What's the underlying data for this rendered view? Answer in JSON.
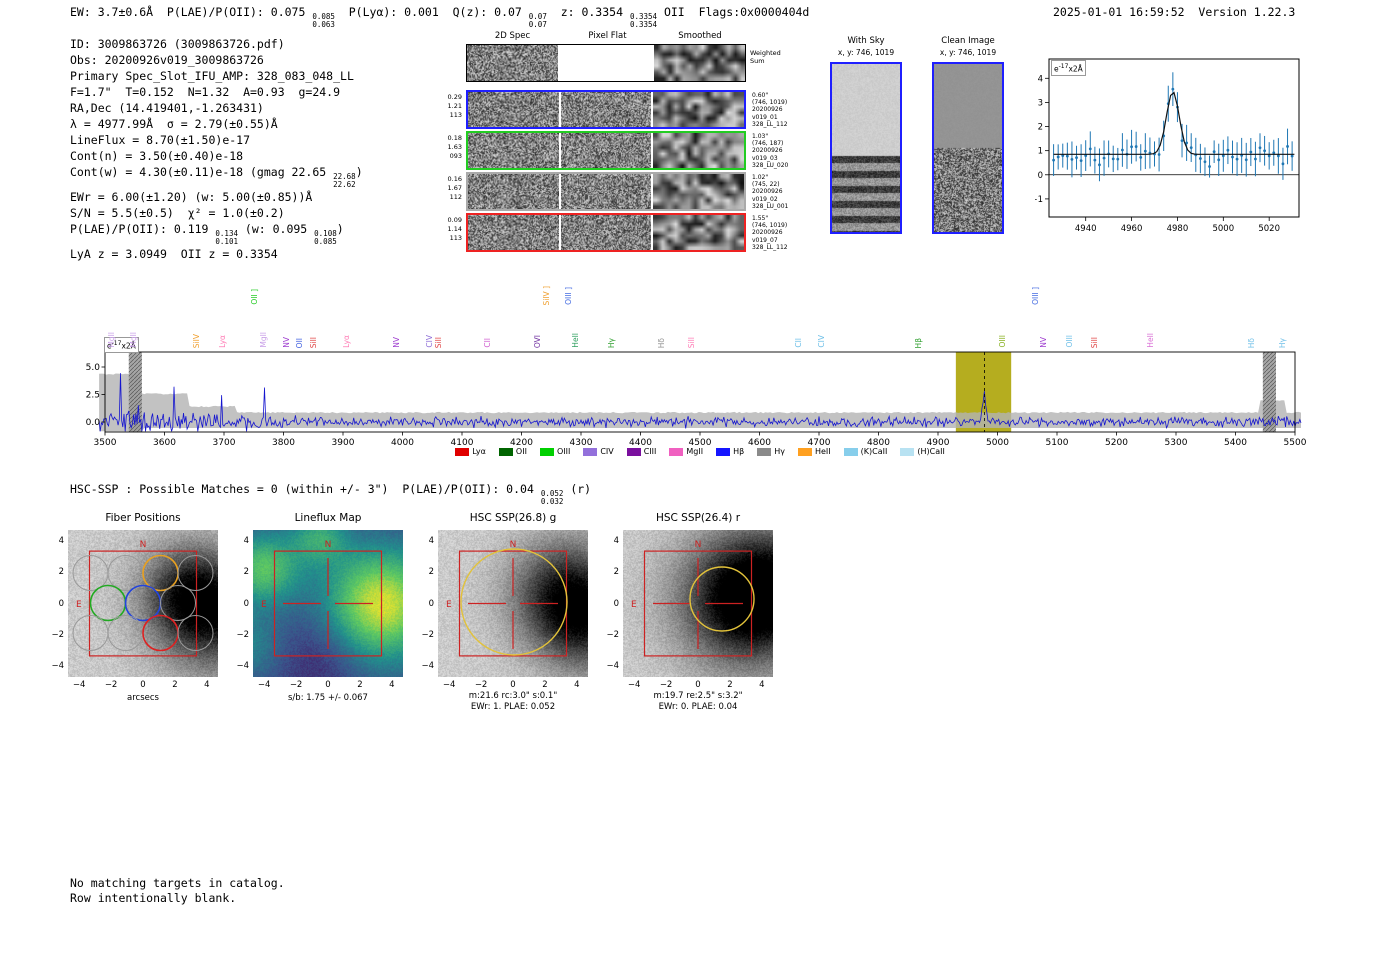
{
  "header": {
    "segments": [
      {
        "t": "EW: 3.7±0.6Å  P(LAE)/P(OII): 0.075 "
      },
      {
        "hi": "0.085",
        "lo": "0.063"
      },
      {
        "t": "  P(Lyα): 0.001  Q(z): 0.07 "
      },
      {
        "hi": "0.07",
        "lo": "0.07"
      },
      {
        "t": "  z: 0.3354 "
      },
      {
        "hi": "0.3354",
        "lo": "0.3354"
      },
      {
        "t": " OII  Flags:0x0000404d"
      }
    ],
    "right": "2025-01-01 16:59:52  Version 1.22.3"
  },
  "info": {
    "lines": [
      [
        {
          "t": "ID: 3009863726 (3009863726.pdf)"
        }
      ],
      [
        {
          "t": "Obs: 20200926v019_3009863726"
        }
      ],
      [
        {
          "t": "Primary Spec_Slot_IFU_AMP: 328_083_048_LL"
        }
      ],
      [
        {
          "t": "F=1.7\"  T=0.152  N=1.32  A=0.93  g=24.9"
        }
      ],
      [
        {
          "t": "RA,Dec (14.419401,-1.263431)"
        }
      ],
      [
        {
          "t": "λ = 4977.99Å  σ = 2.79(±0.55)Å"
        }
      ],
      [
        {
          "t": "LineFlux = 8.70(±1.50)e-17"
        }
      ],
      [
        {
          "t": "Cont(n) = 3.50(±0.40)e-18"
        }
      ],
      [
        {
          "t": "Cont(w) = 4.30(±0.11)e-18 (gmag 22.65 "
        },
        {
          "hi": "22.68",
          "lo": "22.62"
        },
        {
          "t": ")"
        }
      ],
      [
        {
          "t": "EWr = 6.00(±1.20) (w: 5.00(±0.85))Å"
        }
      ],
      [
        {
          "t": "S/N = 5.5(±0.5)  χ² = 1.0(±0.2)"
        }
      ],
      [
        {
          "t": "P(LAE)/P(OII): 0.119 "
        },
        {
          "hi": "0.134",
          "lo": "0.101"
        },
        {
          "t": " (w: 0.095 "
        },
        {
          "hi": "0.108",
          "lo": "0.085"
        },
        {
          "t": ")"
        }
      ],
      [
        {
          "t": "LyA z = 3.0949  OII z = 0.3354"
        }
      ]
    ]
  },
  "cutouts": {
    "col_headers": [
      "2D Spec",
      "Pixel Flat",
      "Smoothed"
    ],
    "weighted_label": "Weighted Sum",
    "rows": [
      {
        "border": "#000000",
        "left": [],
        "right": []
      },
      {
        "border": "#1f1fff",
        "left": [
          "0.29",
          "1.21",
          "113"
        ],
        "right": [
          "0.60\"",
          "(746, 1019)",
          "20200926",
          "v019_01",
          "328_LL_112"
        ]
      },
      {
        "border": "#22cc22",
        "left": [
          "0.18",
          "1.63",
          "093"
        ],
        "right": [
          "1.03\"",
          "(746, 187)",
          "20200926",
          "v019_03",
          "328_LU_020"
        ]
      },
      {
        "border": "#aaaaaa",
        "left": [
          "0.16",
          "1.67",
          "112"
        ],
        "right": [
          "1.02\"",
          "(745, 22)",
          "20200926",
          "v019_02",
          "328_LU_001"
        ]
      },
      {
        "border": "#ee2222",
        "left": [
          "0.09",
          "1.14",
          "113"
        ],
        "right": [
          "1.55\"",
          "(746, 1019)",
          "20200926",
          "v019_07",
          "328_LL_112"
        ]
      }
    ]
  },
  "withsky": {
    "title": "With Sky",
    "xy": "x, y: 746, 1019"
  },
  "clean": {
    "title": "Clean Image",
    "xy": "x, y: 746, 1019"
  },
  "hsc_header": {
    "segments": [
      {
        "t": "HSC-SSP : Possible Matches = 0 (within +/- 3\")  P(LAE)/P(OII): 0.04 "
      },
      {
        "hi": "0.052",
        "lo": "0.032"
      },
      {
        "t": " (r)"
      }
    ]
  },
  "panels": {
    "ticks": [
      -4,
      -2,
      0,
      2,
      4
    ],
    "fiber": {
      "title": "Fiber Positions",
      "xlabel": "arcsecs",
      "n": "N",
      "e": "E"
    },
    "lineflux": {
      "title": "Lineflux Map",
      "caption": "s/b: 1.75 +/- 0.067",
      "n": "N",
      "e": "E"
    },
    "hsc_g": {
      "title": "HSC SSP(26.8) g",
      "caption1": "m:21.6 rc:3.0\"  s:0.1\"",
      "caption2": "EWr: 1. PLAE: 0.052",
      "n": "N",
      "e": "E"
    },
    "hsc_r": {
      "title": "HSC SSP(26.4) r",
      "caption1": "m:19.7  re:2.5\"  s:3.2\"",
      "caption2": "EWr: 0. PLAE: 0.04",
      "n": "N",
      "e": "E"
    }
  },
  "bottom": {
    "line1": "No matching targets in catalog.",
    "line2": "Row intentionally blank."
  },
  "chart_data": [
    {
      "type": "line",
      "id": "zoom_spectrum",
      "title": "",
      "ylabel": "e-17x2Å",
      "xlim": [
        4924,
        5033
      ],
      "ylim": [
        -1.75,
        4.8
      ],
      "x_ticks": [
        4940,
        4960,
        4980,
        5000,
        5020
      ],
      "y_ticks": [
        4,
        3,
        2,
        1,
        0,
        -1
      ],
      "series": [
        {
          "name": "spectrum_errorbar",
          "color": "#1f77b4",
          "baseline": 0.8,
          "typical_error": 0.55,
          "point_step_angstrom": 2
        },
        {
          "name": "gaussian_fit",
          "color": "#111111",
          "mu": 4977.99,
          "sigma": 2.79,
          "amplitude": 2.6,
          "baseline": 0.85
        }
      ]
    },
    {
      "type": "line",
      "id": "full_spectrum",
      "ylabel": "e-17x2Å",
      "xlim": [
        3488,
        5512
      ],
      "ylim": [
        -0.91,
        6.36
      ],
      "x_ticks": [
        3500,
        3600,
        3700,
        3800,
        3900,
        4000,
        4100,
        4200,
        4300,
        4400,
        4500,
        4600,
        4700,
        4800,
        4900,
        5000,
        5100,
        5200,
        5300,
        5400,
        5500
      ],
      "y_ticks": [
        5.0,
        2.5,
        0.0
      ],
      "line_color": "#1515cf",
      "error_band_color": "#b3b3b3",
      "selected_band": {
        "x0": 4930,
        "x1": 5023,
        "color": "#b5ad1f"
      },
      "marker_line": 4977.99,
      "hatched_bands": [
        [
          3540,
          3562
        ],
        [
          5446,
          5468
        ]
      ],
      "emission_labels": [
        {
          "text": "MgII",
          "wl": 3512,
          "color": "#c9a0e8"
        },
        {
          "text": "MgII",
          "wl": 3548,
          "color": "#c9a0e8"
        },
        {
          "text": "SiIV",
          "wl": 3654,
          "color": "#f0a030"
        },
        {
          "text": "Lyα",
          "wl": 3699,
          "color": "#ff7bb5"
        },
        {
          "text": "OII ]",
          "wl": 3752,
          "color": "#22cc22",
          "high": true
        },
        {
          "text": "MgII",
          "wl": 3767,
          "color": "#c9a0e8"
        },
        {
          "text": "NV",
          "wl": 3806,
          "color": "#a040d0"
        },
        {
          "text": "OII",
          "wl": 3827,
          "color": "#4060e0"
        },
        {
          "text": "SiII",
          "wl": 3852,
          "color": "#e04545"
        },
        {
          "text": "Lyα",
          "wl": 3906,
          "color": "#ff7bb5"
        },
        {
          "text": "NV",
          "wl": 3990,
          "color": "#a040d0"
        },
        {
          "text": "CIV",
          "wl": 4046,
          "color": "#9070d8"
        },
        {
          "text": "SiII",
          "wl": 4062,
          "color": "#e04545"
        },
        {
          "text": "CII",
          "wl": 4144,
          "color": "#d060d0"
        },
        {
          "text": "OVI",
          "wl": 4228,
          "color": "#7030a0"
        },
        {
          "text": "SiIV ]",
          "wl": 4243,
          "color": "#f0a030",
          "high": true
        },
        {
          "text": "OIII ]",
          "wl": 4280,
          "color": "#4169e1",
          "high": true
        },
        {
          "text": "HeII",
          "wl": 4291,
          "color": "#30a060"
        },
        {
          "text": "Hγ",
          "wl": 4352,
          "color": "#30a030"
        },
        {
          "text": "Hδ",
          "wl": 4436,
          "color": "#909090"
        },
        {
          "text": "SiII",
          "wl": 4486,
          "color": "#ff7bb5"
        },
        {
          "text": "CII",
          "wl": 4666,
          "color": "#70c0e8"
        },
        {
          "text": "CIV",
          "wl": 4705,
          "color": "#70c0e8"
        },
        {
          "text": "Hβ",
          "wl": 4868,
          "color": "#30a030"
        },
        {
          "text": "OIII",
          "wl": 5010,
          "color": "#88b020"
        },
        {
          "text": "OIII ]",
          "wl": 5064,
          "color": "#4169e1",
          "high": true
        },
        {
          "text": "NV",
          "wl": 5078,
          "color": "#a040d0"
        },
        {
          "text": "OIII",
          "wl": 5122,
          "color": "#70c0e8"
        },
        {
          "text": "SiII",
          "wl": 5164,
          "color": "#e04545"
        },
        {
          "text": "HeII",
          "wl": 5258,
          "color": "#da70d6"
        },
        {
          "text": "Hδ",
          "wl": 5428,
          "color": "#70c0e8"
        },
        {
          "text": "Hγ",
          "wl": 5480,
          "color": "#70c0e8"
        }
      ],
      "legend": [
        {
          "label": "Lyα",
          "color": "#e00000"
        },
        {
          "label": "OII",
          "color": "#006400"
        },
        {
          "label": "OIII",
          "color": "#00d000"
        },
        {
          "label": "CIV",
          "color": "#9370db"
        },
        {
          "label": "CIII",
          "color": "#7a0f9e"
        },
        {
          "label": "MgII",
          "color": "#f060c0"
        },
        {
          "label": "Hβ",
          "color": "#1515ff"
        },
        {
          "label": "Hγ",
          "color": "#8a8a8a"
        },
        {
          "label": "HeII",
          "color": "#ffa020"
        },
        {
          "label": "(K)CaII",
          "color": "#87ceeb"
        },
        {
          "label": "(H)CaII",
          "color": "#b8e2f2"
        }
      ]
    },
    {
      "type": "image",
      "id": "fiber_positions",
      "title": "Fiber Positions",
      "xlabel": "arcsecs",
      "xlim": [
        -4.7,
        4.7
      ],
      "ylim": [
        -4.7,
        4.7
      ],
      "ticks": [
        -4,
        -2,
        0,
        2,
        4
      ],
      "compass": [
        "N",
        "E"
      ],
      "highlight_fiber_colors": [
        "orange",
        "green",
        "blue",
        "red"
      ]
    },
    {
      "type": "heatmap",
      "id": "lineflux_map",
      "title": "Lineflux Map",
      "colormap": "viridis",
      "caption": "s/b: 1.75 +/- 0.067",
      "xlim": [
        -4.7,
        4.7
      ],
      "ylim": [
        -4.7,
        4.7
      ],
      "ticks": [
        -4,
        -2,
        0,
        2,
        4
      ]
    },
    {
      "type": "image",
      "id": "hsc_g_cutout",
      "title": "HSC SSP(26.8) g",
      "captions": [
        "m:21.6 rc:3.0\"  s:0.1\"",
        "EWr: 1. PLAE: 0.052"
      ],
      "ticks": [
        -4,
        -2,
        0,
        2,
        4
      ],
      "aperture_color": "#e2c23a"
    },
    {
      "type": "image",
      "id": "hsc_r_cutout",
      "title": "HSC SSP(26.4) r",
      "captions": [
        "m:19.7  re:2.5\"  s:3.2\"",
        "EWr: 0. PLAE: 0.04"
      ],
      "ticks": [
        -4,
        -2,
        0,
        2,
        4
      ],
      "aperture_color": "#e2c23a"
    }
  ]
}
